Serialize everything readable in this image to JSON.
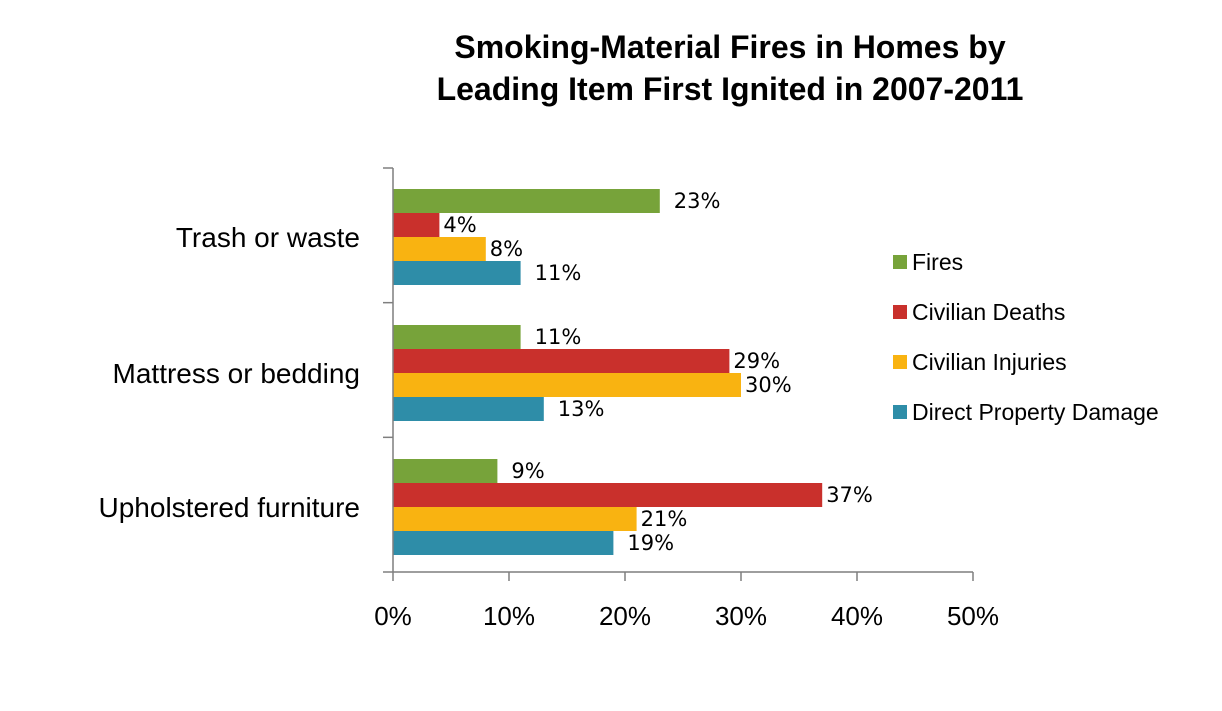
{
  "chart_data": {
    "type": "bar",
    "orientation": "horizontal",
    "title_lines": [
      "Smoking-Material Fires in Homes by",
      "Leading Item First Ignited in 2007-2011"
    ],
    "categories": [
      "Trash  or waste",
      "Mattress or bedding",
      "Upholstered furniture"
    ],
    "series": [
      {
        "name": "Fires",
        "color": "#77A33A",
        "values": [
          23,
          11,
          9
        ],
        "labels": [
          "23%",
          "11%",
          "9%"
        ]
      },
      {
        "name": "Civilian Deaths",
        "color": "#C9302C",
        "values": [
          4,
          29,
          37
        ],
        "labels": [
          "4%",
          "29%",
          "37%"
        ]
      },
      {
        "name": "Civilian Injuries",
        "color": "#F9B311",
        "values": [
          8,
          30,
          21
        ],
        "labels": [
          "8%",
          "30%",
          "21%"
        ]
      },
      {
        "name": "Direct Property Damage",
        "color": "#2E8DA8",
        "values": [
          11,
          13,
          19
        ],
        "labels": [
          "11%",
          "13%",
          "19%"
        ]
      }
    ],
    "xlim": [
      0,
      50
    ],
    "xticks": [
      0,
      10,
      20,
      30,
      40,
      50
    ],
    "xtick_labels": [
      "0%",
      "10%",
      "20%",
      "30%",
      "40%",
      "50%"
    ],
    "grid": false,
    "legend_position": "right"
  }
}
